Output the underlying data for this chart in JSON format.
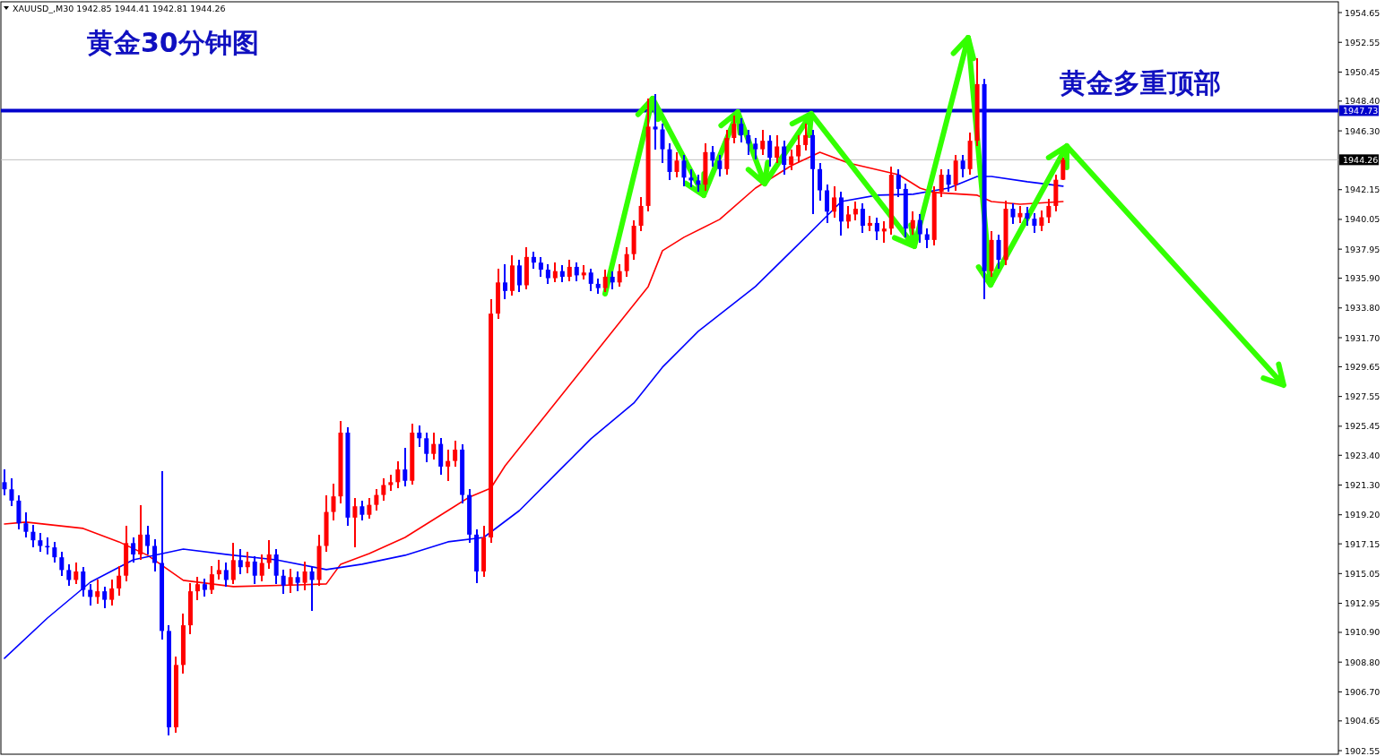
{
  "chart_data": {
    "type": "candlestick",
    "title": "黄金30分钟图",
    "annotations": [
      "XAUUSD_,M30  1942.85 1944.41 1942.81 1944.26",
      "黄金多重顶部"
    ],
    "categories": [
      null,
      null,
      null,
      null,
      null,
      null,
      null,
      null,
      null,
      null,
      null,
      null,
      null,
      null,
      null,
      null,
      null,
      null,
      null,
      null,
      null,
      null,
      null,
      null,
      null,
      null,
      null,
      null,
      null,
      null,
      null,
      null,
      null,
      null,
      null,
      null,
      null,
      null,
      null,
      null,
      null,
      null,
      null,
      null,
      null,
      null,
      null,
      null,
      null,
      null,
      null,
      null,
      null,
      null,
      null,
      null,
      null,
      null,
      null,
      null,
      null,
      null,
      null,
      null,
      null,
      null,
      null,
      null,
      null,
      null,
      null,
      null,
      null,
      null,
      null,
      null,
      null,
      null,
      null,
      null,
      null,
      null,
      null,
      null,
      null,
      null,
      null,
      null,
      null,
      null,
      null,
      null,
      null,
      null,
      null,
      null,
      null,
      null,
      null,
      null,
      null,
      null,
      null,
      null,
      null,
      null,
      null,
      null,
      null,
      null,
      null,
      null,
      null,
      null,
      null,
      null,
      null,
      null,
      null,
      null,
      null,
      null,
      null,
      null,
      null,
      null,
      null,
      null,
      null,
      null,
      null,
      null,
      null,
      null,
      null,
      null,
      null,
      null,
      null,
      null,
      null,
      null,
      null,
      null,
      null,
      null,
      null,
      null,
      null,
      null,
      null,
      null,
      null,
      null,
      null,
      null,
      null,
      null,
      null,
      null,
      null,
      null,
      null,
      null,
      null,
      null,
      null,
      null,
      null,
      null,
      null,
      null,
      null,
      null,
      null,
      null,
      null,
      null,
      null,
      null,
      null,
      null,
      null,
      null,
      null,
      null,
      null
    ],
    "ohlc": [
      [
        1921.5,
        1922.4,
        1920.6,
        1921.0
      ],
      [
        1921.0,
        1921.8,
        1919.8,
        1920.2
      ],
      [
        1920.2,
        1920.6,
        1918.2,
        1918.6
      ],
      [
        1918.6,
        1919.4,
        1917.6,
        1918.0
      ],
      [
        1918.0,
        1918.5,
        1916.9,
        1917.4
      ],
      [
        1917.4,
        1917.9,
        1916.6,
        1917.0
      ],
      [
        1917.0,
        1917.6,
        1916.4,
        1916.9
      ],
      [
        1916.9,
        1917.3,
        1915.8,
        1916.2
      ],
      [
        1916.2,
        1916.6,
        1914.9,
        1915.3
      ],
      [
        1915.3,
        1915.7,
        1914.2,
        1914.6
      ],
      [
        1914.6,
        1915.8,
        1914.3,
        1915.2
      ],
      [
        1915.2,
        1915.5,
        1913.4,
        1913.9
      ],
      [
        1913.9,
        1914.3,
        1912.8,
        1913.4
      ],
      [
        1913.4,
        1914.6,
        1912.9,
        1913.8
      ],
      [
        1913.8,
        1914.1,
        1912.6,
        1913.2
      ],
      [
        1913.2,
        1914.6,
        1912.8,
        1914.0
      ],
      [
        1914.0,
        1915.6,
        1913.5,
        1914.9
      ],
      [
        1914.9,
        1918.4,
        1914.5,
        1917.2
      ],
      [
        1917.2,
        1917.6,
        1915.8,
        1916.4
      ],
      [
        1916.4,
        1919.9,
        1916.0,
        1917.8
      ],
      [
        1917.8,
        1918.4,
        1916.4,
        1917.0
      ],
      [
        1917.0,
        1917.5,
        1915.2,
        1915.8
      ],
      [
        1915.8,
        1922.3,
        1910.4,
        1911.0
      ],
      [
        1911.0,
        1911.4,
        1903.6,
        1904.2
      ],
      [
        1904.2,
        1909.2,
        1903.8,
        1908.6
      ],
      [
        1908.6,
        1912.2,
        1908.0,
        1911.4
      ],
      [
        1911.4,
        1914.4,
        1910.8,
        1913.8
      ],
      [
        1913.8,
        1914.8,
        1913.2,
        1914.3
      ],
      [
        1914.3,
        1914.7,
        1913.4,
        1913.9
      ],
      [
        1913.9,
        1915.6,
        1913.6,
        1915.0
      ],
      [
        1915.0,
        1916.0,
        1914.6,
        1915.3
      ],
      [
        1915.3,
        1915.8,
        1914.1,
        1914.6
      ],
      [
        1914.6,
        1917.2,
        1914.3,
        1916.0
      ],
      [
        1916.0,
        1916.8,
        1915.0,
        1915.5
      ],
      [
        1915.5,
        1916.6,
        1915.1,
        1915.9
      ],
      [
        1915.9,
        1916.3,
        1914.3,
        1914.9
      ],
      [
        1914.9,
        1916.4,
        1914.5,
        1915.8
      ],
      [
        1915.8,
        1917.4,
        1915.4,
        1916.4
      ],
      [
        1916.4,
        1916.8,
        1914.3,
        1914.9
      ],
      [
        1914.9,
        1915.3,
        1913.6,
        1914.2
      ],
      [
        1914.2,
        1915.4,
        1913.7,
        1914.8
      ],
      [
        1914.8,
        1915.2,
        1913.8,
        1914.4
      ],
      [
        1914.4,
        1915.9,
        1913.9,
        1915.2
      ],
      [
        1915.2,
        1915.6,
        1912.4,
        1914.6
      ],
      [
        1914.6,
        1917.8,
        1914.2,
        1917.0
      ],
      [
        1917.0,
        1920.6,
        1916.6,
        1919.4
      ],
      [
        1919.4,
        1921.4,
        1918.8,
        1920.5
      ],
      [
        1920.5,
        1925.8,
        1920.0,
        1925.0
      ],
      [
        1925.0,
        1925.4,
        1918.4,
        1919.0
      ],
      [
        1919.0,
        1920.4,
        1916.9,
        1919.8
      ],
      [
        1919.8,
        1920.2,
        1918.8,
        1919.2
      ],
      [
        1919.2,
        1920.4,
        1918.9,
        1919.9
      ],
      [
        1919.9,
        1921.0,
        1919.5,
        1920.6
      ],
      [
        1920.6,
        1921.8,
        1920.2,
        1921.3
      ],
      [
        1921.3,
        1922.0,
        1920.9,
        1921.5
      ],
      [
        1921.5,
        1923.0,
        1921.1,
        1922.4
      ],
      [
        1922.4,
        1923.9,
        1921.2,
        1921.6
      ],
      [
        1921.6,
        1925.6,
        1921.3,
        1925.0
      ],
      [
        1925.0,
        1925.5,
        1924.0,
        1924.6
      ],
      [
        1924.6,
        1925.0,
        1922.9,
        1923.5
      ],
      [
        1923.5,
        1925.0,
        1923.1,
        1924.2
      ],
      [
        1924.2,
        1924.6,
        1922.0,
        1922.6
      ],
      [
        1922.6,
        1923.8,
        1921.6,
        1923.0
      ],
      [
        1923.0,
        1924.4,
        1922.6,
        1923.8
      ],
      [
        1923.8,
        1924.2,
        1920.0,
        1920.6
      ],
      [
        1920.6,
        1921.0,
        1917.2,
        1917.8
      ],
      [
        1917.8,
        1918.2,
        1914.4,
        1915.2
      ],
      [
        1915.2,
        1918.4,
        1914.8,
        1917.6
      ],
      [
        1917.6,
        1934.4,
        1917.2,
        1933.4
      ],
      [
        1933.4,
        1936.6,
        1933.0,
        1935.6
      ],
      [
        1935.6,
        1936.9,
        1934.4,
        1935.0
      ],
      [
        1935.0,
        1937.5,
        1934.7,
        1936.8
      ],
      [
        1936.8,
        1937.2,
        1934.9,
        1935.4
      ],
      [
        1935.4,
        1938.1,
        1935.1,
        1937.4
      ],
      [
        1937.4,
        1937.8,
        1936.6,
        1937.0
      ],
      [
        1937.0,
        1937.4,
        1936.0,
        1936.5
      ],
      [
        1936.5,
        1936.9,
        1935.5,
        1935.9
      ],
      [
        1935.9,
        1937.0,
        1935.6,
        1936.4
      ],
      [
        1936.4,
        1936.8,
        1935.6,
        1936.0
      ],
      [
        1936.0,
        1937.2,
        1935.7,
        1936.7
      ],
      [
        1936.7,
        1937.0,
        1935.7,
        1936.1
      ],
      [
        1936.1,
        1936.8,
        1935.8,
        1936.3
      ],
      [
        1936.3,
        1936.6,
        1935.0,
        1935.5
      ],
      [
        1935.5,
        1935.9,
        1934.8,
        1935.2
      ],
      [
        1935.2,
        1936.5,
        1934.9,
        1936.0
      ],
      [
        1936.0,
        1936.4,
        1935.1,
        1935.6
      ],
      [
        1935.6,
        1936.9,
        1935.3,
        1936.4
      ],
      [
        1936.4,
        1938.1,
        1936.0,
        1937.6
      ],
      [
        1937.6,
        1940.0,
        1937.2,
        1939.6
      ],
      [
        1939.6,
        1941.6,
        1939.2,
        1941.0
      ],
      [
        1941.0,
        1948.6,
        1940.6,
        1946.6
      ],
      [
        1946.6,
        1948.9,
        1945.0,
        1946.4
      ],
      [
        1946.4,
        1946.8,
        1944.0,
        1945.0
      ],
      [
        1945.0,
        1945.4,
        1942.8,
        1943.4
      ],
      [
        1943.4,
        1944.8,
        1943.0,
        1944.2
      ],
      [
        1944.2,
        1944.6,
        1942.4,
        1943.0
      ],
      [
        1943.0,
        1943.6,
        1942.3,
        1942.8
      ],
      [
        1942.8,
        1943.2,
        1942.0,
        1942.5
      ],
      [
        1942.5,
        1945.4,
        1942.1,
        1944.8
      ],
      [
        1944.8,
        1945.2,
        1943.8,
        1944.2
      ],
      [
        1944.2,
        1944.6,
        1943.1,
        1943.6
      ],
      [
        1943.6,
        1946.4,
        1943.2,
        1945.8
      ],
      [
        1945.8,
        1947.4,
        1945.4,
        1946.8
      ],
      [
        1946.8,
        1947.2,
        1945.5,
        1946.0
      ],
      [
        1946.0,
        1946.4,
        1944.6,
        1945.4
      ],
      [
        1945.4,
        1945.8,
        1944.3,
        1945.0
      ],
      [
        1945.0,
        1946.4,
        1944.6,
        1945.6
      ],
      [
        1945.6,
        1946.0,
        1943.8,
        1944.4
      ],
      [
        1944.4,
        1946.0,
        1944.0,
        1945.2
      ],
      [
        1945.2,
        1945.6,
        1943.2,
        1943.9
      ],
      [
        1943.9,
        1945.0,
        1943.5,
        1944.5
      ],
      [
        1944.5,
        1946.0,
        1944.1,
        1945.3
      ],
      [
        1945.3,
        1946.8,
        1944.9,
        1946.0
      ],
      [
        1946.0,
        1946.4,
        1940.4,
        1943.6
      ],
      [
        1943.6,
        1944.0,
        1941.4,
        1942.1
      ],
      [
        1942.1,
        1942.5,
        1939.8,
        1940.6
      ],
      [
        1940.6,
        1942.4,
        1940.2,
        1941.6
      ],
      [
        1941.6,
        1942.0,
        1938.9,
        1939.9
      ],
      [
        1939.9,
        1941.0,
        1939.4,
        1940.4
      ],
      [
        1940.4,
        1941.3,
        1940.0,
        1940.8
      ],
      [
        1940.8,
        1941.2,
        1939.1,
        1939.6
      ],
      [
        1939.6,
        1940.3,
        1939.2,
        1939.8
      ],
      [
        1939.8,
        1940.2,
        1938.6,
        1939.2
      ],
      [
        1939.2,
        1939.9,
        1938.4,
        1939.4
      ],
      [
        1939.4,
        1943.8,
        1939.0,
        1943.2
      ],
      [
        1943.2,
        1943.6,
        1941.6,
        1942.2
      ],
      [
        1942.2,
        1942.6,
        1938.8,
        1939.4
      ],
      [
        1939.4,
        1940.6,
        1939.0,
        1940.0
      ],
      [
        1940.0,
        1940.4,
        1938.4,
        1939.0
      ],
      [
        1939.0,
        1939.4,
        1938.0,
        1938.6
      ],
      [
        1938.6,
        1942.4,
        1938.2,
        1942.0
      ],
      [
        1942.0,
        1943.6,
        1941.6,
        1943.2
      ],
      [
        1943.2,
        1943.6,
        1942.0,
        1942.5
      ],
      [
        1942.5,
        1944.6,
        1942.1,
        1944.2
      ],
      [
        1944.2,
        1944.6,
        1943.0,
        1943.6
      ],
      [
        1943.6,
        1946.2,
        1943.2,
        1945.6
      ],
      [
        1945.6,
        1951.4,
        1945.2,
        1949.6
      ],
      [
        1949.6,
        1950.0,
        1934.4,
        1936.4
      ],
      [
        1936.4,
        1939.2,
        1936.0,
        1938.6
      ],
      [
        1938.6,
        1939.0,
        1936.6,
        1937.2
      ],
      [
        1937.2,
        1941.4,
        1936.8,
        1940.8
      ],
      [
        1940.8,
        1941.2,
        1939.7,
        1940.2
      ],
      [
        1940.2,
        1941.0,
        1939.8,
        1940.5
      ],
      [
        1940.5,
        1940.9,
        1939.6,
        1940.1
      ],
      [
        1940.1,
        1940.5,
        1939.1,
        1939.6
      ],
      [
        1939.6,
        1940.7,
        1939.2,
        1940.2
      ],
      [
        1940.2,
        1941.5,
        1939.8,
        1941.0
      ],
      [
        1941.0,
        1943.2,
        1940.6,
        1942.85
      ],
      [
        1942.85,
        1944.41,
        1942.81,
        1944.26
      ],
      null,
      null,
      null,
      null,
      null,
      null,
      null,
      null,
      null,
      null,
      null,
      null,
      null,
      null,
      null,
      null,
      null,
      null,
      null,
      null,
      null,
      null,
      null,
      null,
      null,
      null,
      null,
      null,
      null,
      null,
      null,
      null,
      null,
      null,
      null,
      null,
      null,
      null
    ],
    "series": [
      {
        "type": "line",
        "color": "#ff0000",
        "values": [
          1918.55,
          null,
          null,
          1918.68,
          null,
          null,
          null,
          null,
          null,
          null,
          null,
          1918.24,
          null,
          null,
          null,
          null,
          1917.29,
          null,
          null,
          null,
          1916.34,
          null,
          null,
          null,
          null,
          1914.57,
          null,
          null,
          null,
          null,
          null,
          null,
          1914.13,
          null,
          null,
          null,
          null,
          null,
          null,
          null,
          null,
          1914.25,
          null,
          null,
          null,
          1914.32,
          null,
          1915.71,
          null,
          null,
          null,
          1916.47,
          null,
          null,
          null,
          null,
          1917.6,
          null,
          null,
          null,
          null,
          1919.18,
          null,
          null,
          null,
          1920.45,
          null,
          null,
          1921.08,
          null,
          1922.66,
          null,
          null,
          null,
          null,
          1925.82,
          null,
          null,
          null,
          null,
          null,
          1929.62,
          null,
          null,
          null,
          null,
          null,
          1933.41,
          null,
          null,
          1935.31,
          null,
          1937.84,
          null,
          null,
          1938.79,
          null,
          null,
          null,
          null,
          1940.05,
          null,
          null,
          null,
          null,
          1942.26,
          null,
          null,
          null,
          null,
          1943.84,
          null,
          null,
          null,
          1944.79,
          null,
          null,
          null,
          1944.03,
          null,
          null,
          null,
          null,
          null,
          null,
          1943.21,
          null,
          null,
          1942.26,
          null,
          1941.95,
          null,
          null,
          null,
          null,
          null,
          1941.76,
          null,
          1941.31,
          null,
          null,
          null,
          1941.12,
          null,
          null,
          null,
          null,
          null,
          1941.31,
          null,
          null,
          null,
          null,
          null,
          null,
          null,
          null,
          null,
          null,
          null,
          null,
          null,
          null,
          null,
          null,
          null,
          null,
          null,
          null,
          null,
          null,
          null,
          null,
          null,
          null,
          null,
          null,
          null,
          null,
          null,
          null,
          null,
          null,
          null,
          null,
          null,
          null
        ]
      },
      {
        "type": "line",
        "color": "#0000ff",
        "values": [
          1909.07,
          null,
          null,
          null,
          null,
          null,
          1911.91,
          null,
          null,
          null,
          null,
          null,
          1914.44,
          null,
          null,
          null,
          null,
          null,
          1916.02,
          null,
          null,
          null,
          null,
          null,
          null,
          1916.78,
          null,
          null,
          null,
          null,
          null,
          null,
          1916.34,
          null,
          null,
          null,
          null,
          null,
          1916.02,
          null,
          null,
          null,
          null,
          null,
          null,
          1915.33,
          null,
          null,
          null,
          null,
          1915.71,
          null,
          null,
          null,
          null,
          null,
          1916.34,
          null,
          null,
          null,
          null,
          null,
          1917.29,
          null,
          null,
          null,
          null,
          1917.6,
          null,
          null,
          null,
          null,
          1919.5,
          null,
          null,
          null,
          null,
          1922.03,
          null,
          null,
          null,
          null,
          1924.56,
          null,
          null,
          null,
          null,
          null,
          1927.09,
          null,
          null,
          null,
          1929.62,
          null,
          null,
          null,
          null,
          1932.15,
          null,
          null,
          null,
          null,
          null,
          null,
          null,
          1935.31,
          null,
          null,
          null,
          null,
          null,
          null,
          1938.79,
          null,
          null,
          null,
          null,
          1941.31,
          null,
          null,
          null,
          null,
          1941.76,
          null,
          null,
          null,
          null,
          1941.82,
          null,
          null,
          null,
          null,
          1942.26,
          null,
          null,
          null,
          1943.08,
          null,
          1943.08,
          null,
          null,
          null,
          null,
          1942.71,
          null,
          null,
          null,
          null,
          1942.39,
          null,
          null,
          null,
          null,
          null,
          null,
          null,
          null,
          null,
          null,
          null,
          null,
          null,
          null,
          null,
          null,
          null,
          null,
          null,
          null,
          null,
          null,
          null,
          null,
          null,
          null,
          null,
          null,
          null,
          null,
          null,
          null,
          null,
          null,
          null,
          null,
          null,
          null
        ]
      }
    ],
    "ylim": [
      1902.3,
      1955.41
    ],
    "yticks": [
      1902.55,
      1904.65,
      {
        "value": 1906.7,
        "label": "1906.70"
      },
      {
        "value": 1908.8,
        "label": "1908.80"
      },
      {
        "value": 1910.9,
        "label": "1910.90"
      },
      1912.95,
      1915.05,
      1917.15,
      {
        "value": 1919.2,
        "label": "1919.20"
      },
      {
        "value": 1921.3,
        "label": "1921.30"
      },
      {
        "value": 1923.4,
        "label": "1923.40"
      },
      1925.45,
      1927.55,
      1929.65,
      {
        "value": 1931.7,
        "label": "1931.70"
      },
      {
        "value": 1933.8,
        "label": "1933.80"
      },
      {
        "value": 1935.9,
        "label": "1935.90"
      },
      1937.95,
      1940.05,
      1942.15,
      {
        "value": 1946.3,
        "label": "1946.30"
      },
      {
        "value": 1948.4,
        "label": "1948.40"
      },
      1950.45,
      1952.55,
      1954.65
    ],
    "ref_lines": [
      {
        "axis": "y",
        "value": 1947.73,
        "label": "1947.73",
        "color": "#0000cc"
      },
      {
        "axis": "y",
        "value": 1944.26,
        "label": "1944.26",
        "color": "#c0c0c0"
      }
    ],
    "tick_labels": "y"
  }
}
